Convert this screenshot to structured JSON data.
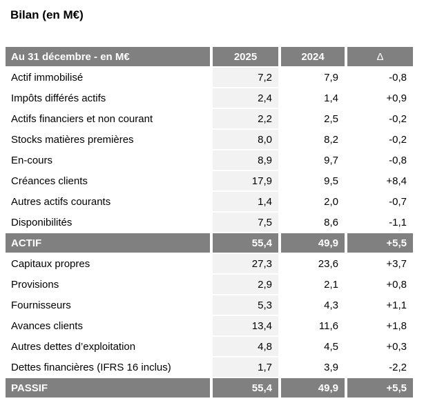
{
  "page_title": "Bilan (en M€)",
  "colors": {
    "header_bg": "#808080",
    "header_text": "#ffffff",
    "cell_2025_bg": "#f2f2f2",
    "body_text": "#000000"
  },
  "table": {
    "header": {
      "label": "Au 31 décembre - en M€",
      "col_2025": "2025",
      "col_2024": "2024",
      "col_delta": "Δ"
    },
    "rows": [
      {
        "type": "data",
        "label": "Actif immobilisé",
        "y2025": "7,2",
        "y2024": "7,9",
        "delta": "-0,8"
      },
      {
        "type": "data",
        "label": "Impôts différés actifs",
        "y2025": "2,4",
        "y2024": "1,4",
        "delta": "+0,9"
      },
      {
        "type": "data",
        "label": "Actifs financiers et non courant",
        "y2025": "2,2",
        "y2024": "2,5",
        "delta": "-0,2"
      },
      {
        "type": "data",
        "label": "Stocks matières premières",
        "y2025": "8,0",
        "y2024": "8,2",
        "delta": "-0,2"
      },
      {
        "type": "data",
        "label": "En-cours",
        "y2025": "8,9",
        "y2024": "9,7",
        "delta": "-0,8"
      },
      {
        "type": "data",
        "label": "Créances clients",
        "y2025": "17,9",
        "y2024": "9,5",
        "delta": "+8,4"
      },
      {
        "type": "data",
        "label": "Autres actifs courants",
        "y2025": "1,4",
        "y2024": "2,0",
        "delta": "-0,7"
      },
      {
        "type": "data",
        "label": "Disponibilités",
        "y2025": "7,5",
        "y2024": "8,6",
        "delta": "-1,1"
      },
      {
        "type": "total",
        "label": "ACTIF",
        "y2025": "55,4",
        "y2024": "49,9",
        "delta": "+5,5"
      },
      {
        "type": "data",
        "label": "Capitaux propres",
        "y2025": "27,3",
        "y2024": "23,6",
        "delta": "+3,7"
      },
      {
        "type": "data",
        "label": "Provisions",
        "y2025": "2,9",
        "y2024": "2,1",
        "delta": "+0,8"
      },
      {
        "type": "data",
        "label": "Fournisseurs",
        "y2025": "5,3",
        "y2024": "4,3",
        "delta": "+1,1"
      },
      {
        "type": "data",
        "label": "Avances clients",
        "y2025": "13,4",
        "y2024": "11,6",
        "delta": "+1,8"
      },
      {
        "type": "data",
        "label": "Autres dettes d’exploitation",
        "y2025": "4,8",
        "y2024": "4,5",
        "delta": "+0,3"
      },
      {
        "type": "data",
        "label": "Dettes financières (IFRS 16 inclus)",
        "y2025": "1,7",
        "y2024": "3,9",
        "delta": "-2,2"
      },
      {
        "type": "total",
        "label": "PASSIF",
        "y2025": "55,4",
        "y2024": "49,9",
        "delta": "+5,5"
      }
    ]
  }
}
